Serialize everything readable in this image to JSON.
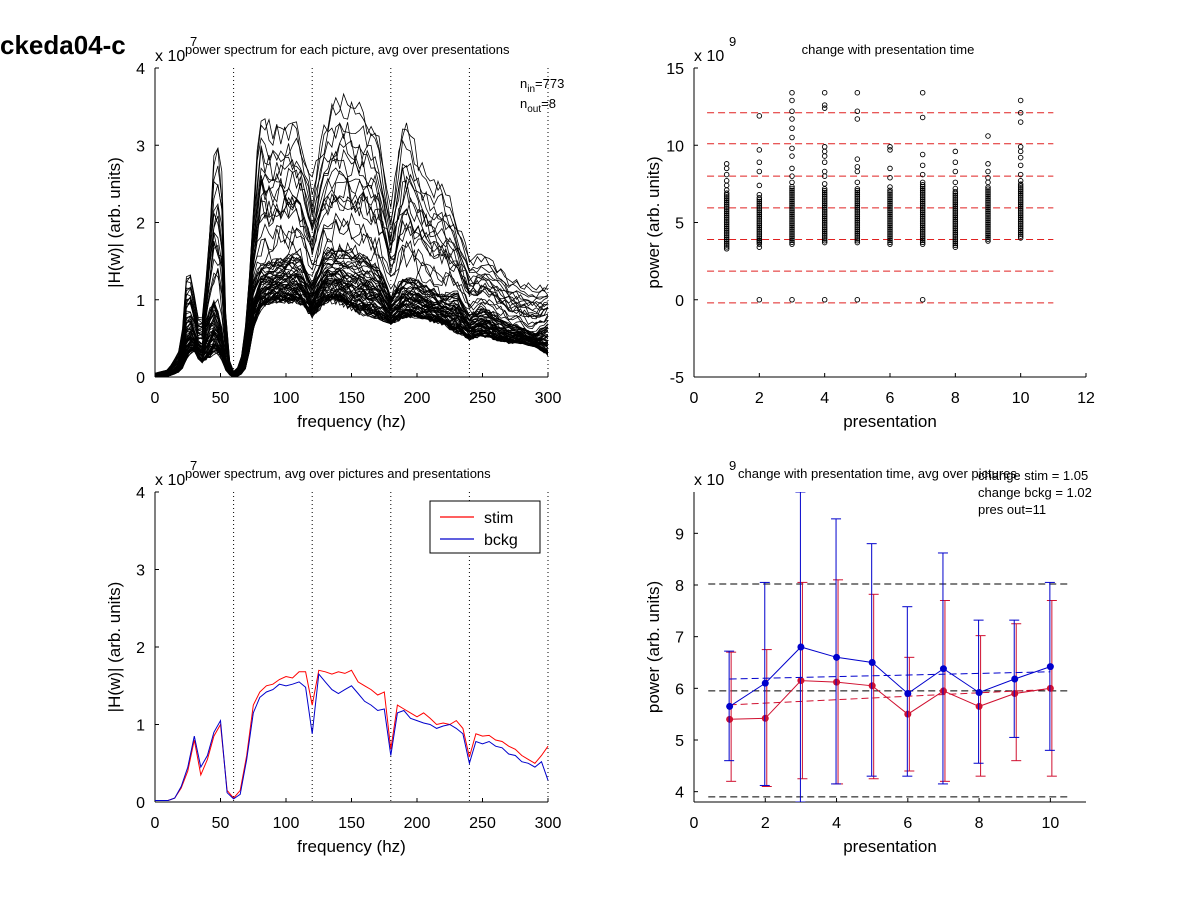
{
  "figure_title": "ckeda04-c",
  "chart_data": [
    {
      "id": "p1",
      "type": "line",
      "title": "power spectrum for each picture, avg over presentations",
      "xlabel": "frequency (hz)",
      "ylabel": "|H(w)| (arb. units)",
      "exponent_base": "x 10",
      "exponent_power": "7",
      "xlim": [
        0,
        300
      ],
      "ylim": [
        0,
        4
      ],
      "xticks": [
        "0",
        "50",
        "100",
        "150",
        "200",
        "250",
        "300"
      ],
      "yticks": [
        "0",
        "1",
        "2",
        "3",
        "4"
      ],
      "vlines": [
        60,
        120,
        180,
        240,
        300
      ],
      "annotations": [
        {
          "base": "n",
          "sub": "in",
          "value": "=773"
        },
        {
          "base": "n",
          "sub": "out",
          "value": "=8"
        }
      ],
      "n_traces": 80,
      "series_envelope": {
        "x": [
          0,
          10,
          20,
          25,
          30,
          35,
          40,
          45,
          50,
          55,
          60,
          65,
          70,
          75,
          80,
          90,
          100,
          110,
          120,
          130,
          140,
          150,
          160,
          170,
          180,
          190,
          200,
          210,
          220,
          230,
          240,
          250,
          260,
          270,
          280,
          290,
          300
        ],
        "low": [
          0.0,
          0.01,
          0.08,
          0.3,
          0.35,
          0.18,
          0.25,
          0.35,
          0.3,
          0.05,
          0.0,
          0.02,
          0.15,
          0.65,
          0.9,
          1.0,
          1.0,
          1.0,
          0.8,
          1.0,
          1.0,
          0.9,
          0.85,
          0.8,
          0.7,
          0.8,
          0.8,
          0.75,
          0.7,
          0.6,
          0.5,
          0.55,
          0.5,
          0.45,
          0.45,
          0.4,
          0.3
        ],
        "mean": [
          0.02,
          0.03,
          0.2,
          0.85,
          0.6,
          0.35,
          0.8,
          1.0,
          0.75,
          0.12,
          0.03,
          0.05,
          0.4,
          1.2,
          1.45,
          1.5,
          1.55,
          1.6,
          1.2,
          1.65,
          1.65,
          1.62,
          1.55,
          1.45,
          1.05,
          1.3,
          1.25,
          1.15,
          1.05,
          1.1,
          0.8,
          0.9,
          0.8,
          0.7,
          0.65,
          0.55,
          0.7
        ],
        "high": [
          0.05,
          0.1,
          0.4,
          1.6,
          1.1,
          0.6,
          1.5,
          3.0,
          3.3,
          0.3,
          0.08,
          0.15,
          0.8,
          2.2,
          3.6,
          3.3,
          3.4,
          3.3,
          2.6,
          3.4,
          3.75,
          3.7,
          3.5,
          3.3,
          2.2,
          3.5,
          3.0,
          2.6,
          2.6,
          2.1,
          1.6,
          1.6,
          1.5,
          1.3,
          1.25,
          1.2,
          1.2
        ]
      }
    },
    {
      "id": "p2",
      "type": "scatter",
      "title": "change with presentation time",
      "xlabel": "presentation",
      "ylabel": "power (arb. units)",
      "exponent_base": "x 10",
      "exponent_power": "9",
      "xlim": [
        0,
        12
      ],
      "ylim": [
        -5,
        15
      ],
      "xticks": [
        "0",
        "2",
        "4",
        "6",
        "8",
        "10",
        "12"
      ],
      "yticks": [
        "-5",
        "0",
        "5",
        "10",
        "15"
      ],
      "hlines": [
        12.1,
        10.1,
        8.0,
        5.95,
        3.9,
        1.85,
        -0.2
      ],
      "hline_color": "#e02020",
      "columns": [
        {
          "x": 1,
          "outliers": [
            8.8,
            8.5,
            8.1,
            7.7,
            7.4,
            7.1
          ]
        },
        {
          "x": 2,
          "outliers": [
            11.9,
            9.7,
            8.9,
            8.3,
            7.4,
            6.8,
            3.8,
            3.4,
            0.0
          ]
        },
        {
          "x": 3,
          "outliers": [
            13.4,
            12.9,
            12.2,
            11.7,
            11.1,
            10.5,
            9.8,
            9.3,
            8.5,
            8.0,
            7.6,
            0.0
          ]
        },
        {
          "x": 4,
          "outliers": [
            13.4,
            12.6,
            12.4,
            9.9,
            9.6,
            9.3,
            8.9,
            8.3,
            8.0,
            7.5,
            0.0
          ]
        },
        {
          "x": 5,
          "outliers": [
            13.4,
            12.2,
            11.7,
            9.1,
            8.6,
            8.3,
            7.6,
            0.0
          ]
        },
        {
          "x": 6,
          "outliers": [
            9.9,
            9.7,
            8.5,
            7.9,
            7.3
          ]
        },
        {
          "x": 7,
          "outliers": [
            13.4,
            11.8,
            9.4,
            8.7,
            8.1,
            7.6,
            0.0
          ]
        },
        {
          "x": 8,
          "outliers": [
            9.6,
            8.9,
            8.3,
            7.6,
            7.2
          ]
        },
        {
          "x": 9,
          "outliers": [
            10.6,
            8.8,
            8.3,
            7.9,
            7.6
          ]
        },
        {
          "x": 10,
          "outliers": [
            12.9,
            12.1,
            11.5,
            9.9,
            9.6,
            9.2,
            8.7,
            8.1,
            7.7
          ]
        }
      ],
      "column_dense_ranges": [
        [
          3.3,
          7.0
        ],
        [
          3.6,
          6.7
        ],
        [
          3.6,
          7.4
        ],
        [
          3.7,
          7.3
        ],
        [
          3.7,
          7.3
        ],
        [
          3.6,
          7.1
        ],
        [
          3.6,
          7.5
        ],
        [
          3.4,
          7.1
        ],
        [
          3.8,
          7.4
        ],
        [
          4.0,
          7.6
        ]
      ]
    },
    {
      "id": "p3",
      "type": "line",
      "title": "power spectrum, avg over pictures and presentations",
      "xlabel": "frequency (hz)",
      "ylabel": "|H(w)| (arb. units)",
      "exponent_base": "x 10",
      "exponent_power": "7",
      "xlim": [
        0,
        300
      ],
      "ylim": [
        0,
        4
      ],
      "xticks": [
        "0",
        "50",
        "100",
        "150",
        "200",
        "250",
        "300"
      ],
      "yticks": [
        "0",
        "1",
        "2",
        "3",
        "4"
      ],
      "vlines": [
        60,
        120,
        180,
        240,
        300
      ],
      "legend_position": "top-right",
      "x": [
        0,
        5,
        10,
        15,
        20,
        25,
        30,
        35,
        40,
        45,
        50,
        55,
        60,
        65,
        70,
        75,
        80,
        85,
        90,
        95,
        100,
        105,
        110,
        115,
        120,
        125,
        130,
        135,
        140,
        145,
        150,
        155,
        160,
        165,
        170,
        175,
        180,
        185,
        190,
        195,
        200,
        205,
        210,
        215,
        220,
        225,
        230,
        235,
        240,
        245,
        250,
        255,
        260,
        265,
        270,
        275,
        280,
        285,
        290,
        295,
        300
      ],
      "series": [
        {
          "name": "stim",
          "color": "#ff0000",
          "values": [
            0.02,
            0.02,
            0.02,
            0.05,
            0.18,
            0.4,
            0.8,
            0.35,
            0.55,
            0.85,
            1.0,
            0.15,
            0.05,
            0.15,
            0.6,
            1.25,
            1.42,
            1.5,
            1.52,
            1.58,
            1.62,
            1.6,
            1.68,
            1.68,
            1.25,
            1.7,
            1.68,
            1.65,
            1.68,
            1.66,
            1.7,
            1.55,
            1.5,
            1.45,
            1.38,
            1.42,
            0.68,
            1.25,
            1.2,
            1.15,
            1.1,
            1.15,
            1.08,
            1.0,
            1.02,
            1.0,
            1.05,
            0.95,
            0.58,
            0.88,
            0.85,
            0.86,
            0.8,
            0.78,
            0.72,
            0.68,
            0.6,
            0.55,
            0.5,
            0.6,
            0.72
          ]
        },
        {
          "name": "bckg",
          "color": "#0000cc",
          "values": [
            0.02,
            0.02,
            0.02,
            0.05,
            0.2,
            0.45,
            0.85,
            0.45,
            0.6,
            0.9,
            1.05,
            0.12,
            0.04,
            0.1,
            0.55,
            1.15,
            1.35,
            1.42,
            1.45,
            1.52,
            1.5,
            1.52,
            1.55,
            1.48,
            0.88,
            1.65,
            1.55,
            1.45,
            1.4,
            1.45,
            1.5,
            1.4,
            1.3,
            1.25,
            1.18,
            1.2,
            0.6,
            1.15,
            1.18,
            1.08,
            1.05,
            1.02,
            1.0,
            0.95,
            0.98,
            1.0,
            0.95,
            0.88,
            0.5,
            0.78,
            0.75,
            0.78,
            0.72,
            0.7,
            0.62,
            0.6,
            0.52,
            0.5,
            0.45,
            0.52,
            0.28
          ]
        }
      ]
    },
    {
      "id": "p4",
      "type": "line",
      "title": "change with presentation time, avg over pictures",
      "xlabel": "presentation",
      "ylabel": "power (arb. units)",
      "exponent_base": "x 10",
      "exponent_power": "9",
      "xlim": [
        0,
        11
      ],
      "ylim": [
        3.8,
        9.8
      ],
      "xticks": [
        "0",
        "2",
        "4",
        "6",
        "8",
        "10"
      ],
      "yticks": [
        "4",
        "5",
        "6",
        "7",
        "8",
        "9"
      ],
      "annotations": [
        "change stim = 1.05",
        "change bckg = 1.02",
        "pres out=11"
      ],
      "hlines": [
        8.02,
        5.95,
        3.9
      ],
      "x": [
        1,
        2,
        3,
        4,
        5,
        6,
        7,
        8,
        9,
        10
      ],
      "series": [
        {
          "name": "stim",
          "color": "#d01030",
          "values": [
            5.4,
            5.42,
            6.15,
            6.12,
            6.05,
            5.5,
            5.95,
            5.65,
            5.9,
            6.0
          ],
          "err_low": [
            4.2,
            4.1,
            4.25,
            4.15,
            4.25,
            4.4,
            4.2,
            4.3,
            4.6,
            4.3
          ],
          "err_high": [
            6.7,
            6.75,
            8.05,
            8.1,
            7.82,
            6.6,
            7.7,
            7.02,
            7.25,
            7.7
          ],
          "trend": [
            5.68,
            5.98
          ]
        },
        {
          "name": "bckg",
          "color": "#0000cc",
          "values": [
            5.65,
            6.1,
            6.8,
            6.6,
            6.5,
            5.9,
            6.38,
            5.92,
            6.18,
            6.42
          ],
          "err_low": [
            4.6,
            4.12,
            3.8,
            4.15,
            4.3,
            4.3,
            4.15,
            4.55,
            5.05,
            4.8
          ],
          "err_high": [
            6.72,
            8.05,
            9.8,
            9.28,
            8.8,
            7.58,
            8.62,
            7.32,
            7.32,
            8.05
          ],
          "trend": [
            6.18,
            6.32
          ]
        }
      ]
    }
  ]
}
